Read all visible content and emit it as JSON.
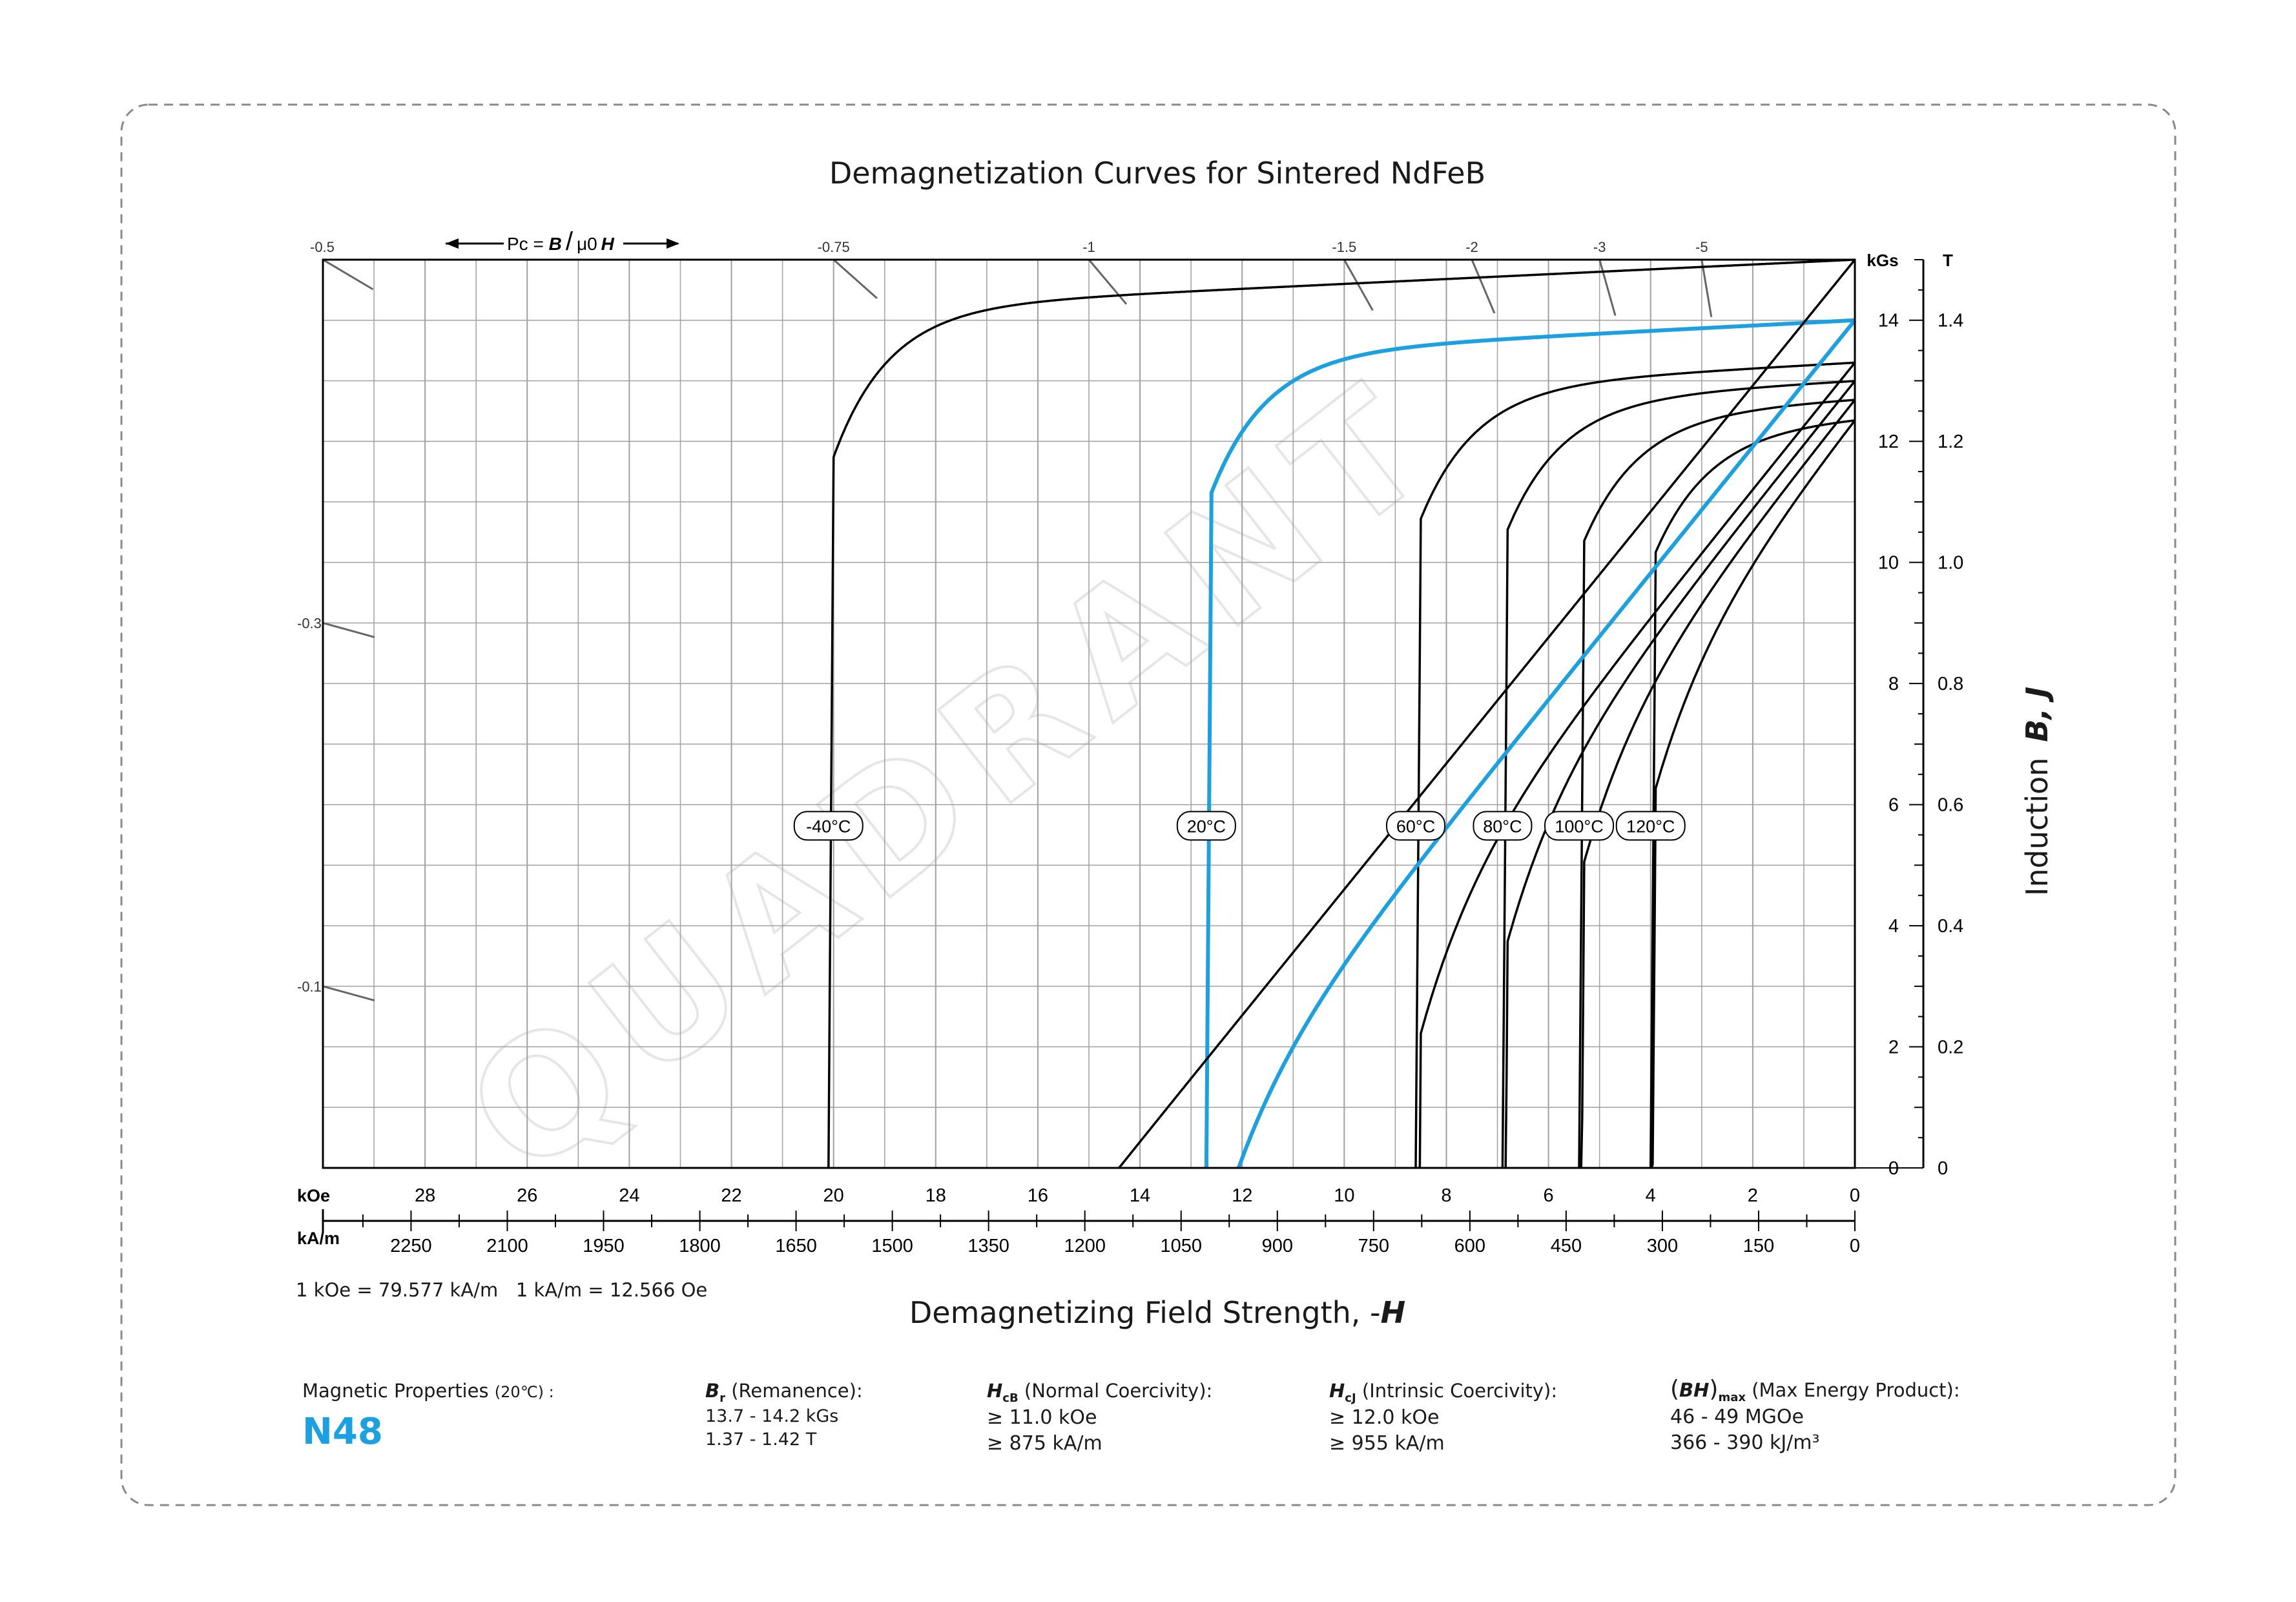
{
  "chart_data": {
    "type": "line",
    "title": "Demagnetization Curves for Sintered NdFeB",
    "xlabel_prefix": "Demagnetizing Field Strength, -",
    "xlabel_symbol": "H",
    "ylabel_prefix": "Induction",
    "ylabel_symbol": "B, J",
    "x_unit_koe": "kOe",
    "x_unit_kam": "kA/m",
    "y_unit_kgs": "kGs",
    "y_unit_t": "T",
    "x_range_koe": [
      30,
      0
    ],
    "y_range_kgs": [
      0,
      15
    ],
    "grid": true,
    "x_ticks_koe": [
      "28",
      "26",
      "24",
      "22",
      "20",
      "18",
      "16",
      "14",
      "12",
      "10",
      "8",
      "6",
      "4",
      "2",
      "0"
    ],
    "x_ticks_kam": [
      "2250",
      "2100",
      "1950",
      "1800",
      "1650",
      "1500",
      "1350",
      "1200",
      "1050",
      "900",
      "750",
      "600",
      "450",
      "300",
      "150",
      "0"
    ],
    "y_ticks_kgs": [
      "0",
      "2",
      "4",
      "6",
      "8",
      "10",
      "12",
      "14"
    ],
    "y_ticks_t": [
      "0",
      "0.2",
      "0.4",
      "0.6",
      "0.8",
      "1.0",
      "1.2",
      "1.4"
    ],
    "conversion_note": "1 kOe = 79.577 kA/m   1 kA/m = 12.566 Oe",
    "permeance_label_prefix": "Pc = ",
    "permeance_label_B": "B",
    "permeance_label_mid": "/",
    "permeance_label_mu": "μ0",
    "permeance_label_H": "H",
    "permeance_ticks": [
      "-0.5",
      "-0.75",
      "-1",
      "-1.5",
      "-2",
      "-3",
      "-5",
      "-0.3",
      "-0.1"
    ],
    "watermark": "QUADRANT",
    "series": [
      {
        "name": "-40°C",
        "type": "J",
        "Br": 15.0,
        "Hcj": 20.1,
        "color": "#000000"
      },
      {
        "name": "20°C",
        "type": "J",
        "Br": 14.0,
        "Hcj": 12.7,
        "color": "#1ba1e2"
      },
      {
        "name": "60°C",
        "type": "J",
        "Br": 13.3,
        "Hcj": 8.6,
        "color": "#000000"
      },
      {
        "name": "80°C",
        "type": "J",
        "Br": 13.0,
        "Hcj": 6.9,
        "color": "#000000"
      },
      {
        "name": "100°C",
        "type": "J",
        "Br": 12.7,
        "Hcj": 5.4,
        "color": "#000000"
      },
      {
        "name": "120°C",
        "type": "J",
        "Br": 12.4,
        "Hcj": 4.0,
        "color": "#000000"
      },
      {
        "name": "20°C B",
        "type": "B",
        "Br": 14.0,
        "Hcb": 12.4,
        "color": "#1ba1e2"
      },
      {
        "name": "-40°C B",
        "type": "B",
        "Br": 15.0,
        "Hcb": 14.6,
        "color": "#000000"
      },
      {
        "name": "60°C B",
        "type": "B",
        "Br": 13.3,
        "Hcb": 9.2,
        "color": "#000000"
      },
      {
        "name": "80°C B",
        "type": "B",
        "Br": 13.0,
        "Hcb": 8.5,
        "color": "#000000"
      },
      {
        "name": "100°C B",
        "type": "B",
        "Br": 12.7,
        "Hcb": 7.5,
        "color": "#000000"
      },
      {
        "name": "120°C B",
        "type": "B",
        "Br": 12.4,
        "Hcb": 6.7,
        "color": "#000000"
      }
    ],
    "curve_labels": [
      "-40°C",
      "20°C",
      "60°C",
      "80°C",
      "100°C",
      "120°C"
    ]
  },
  "properties": {
    "heading": "Magnetic Properties",
    "heading_temp": "(20℃) :",
    "grade": "N48",
    "br_symbol": "B",
    "br_sub": "r",
    "br_label": "(Remanence):",
    "br_v1": "13.7 - 14.2 kGs",
    "br_v2": "1.37 - 1.42 T",
    "hcb_symbol": "H",
    "hcb_sub": "cB",
    "hcb_label": "(Normal Coercivity):",
    "hcb_v1": "≥ 11.0 kOe",
    "hcb_v2": "≥ 875 kA/m",
    "hcj_symbol": "H",
    "hcj_sub": "cJ",
    "hcj_label": "(Intrinsic Coercivity):",
    "hcj_v1": "≥ 12.0 kOe",
    "hcj_v2": "≥ 955 kA/m",
    "bh_symbol": "BH",
    "bh_sub": "max",
    "bh_label": "(Max Energy Product):",
    "bh_v1": "46 - 49 MGOe",
    "bh_v2": "366 - 390 kJ/m³"
  },
  "colors": {
    "accent": "#1ba1e2",
    "curve": "#000000",
    "grid": "#a0a0a0",
    "frame": "#888888"
  }
}
